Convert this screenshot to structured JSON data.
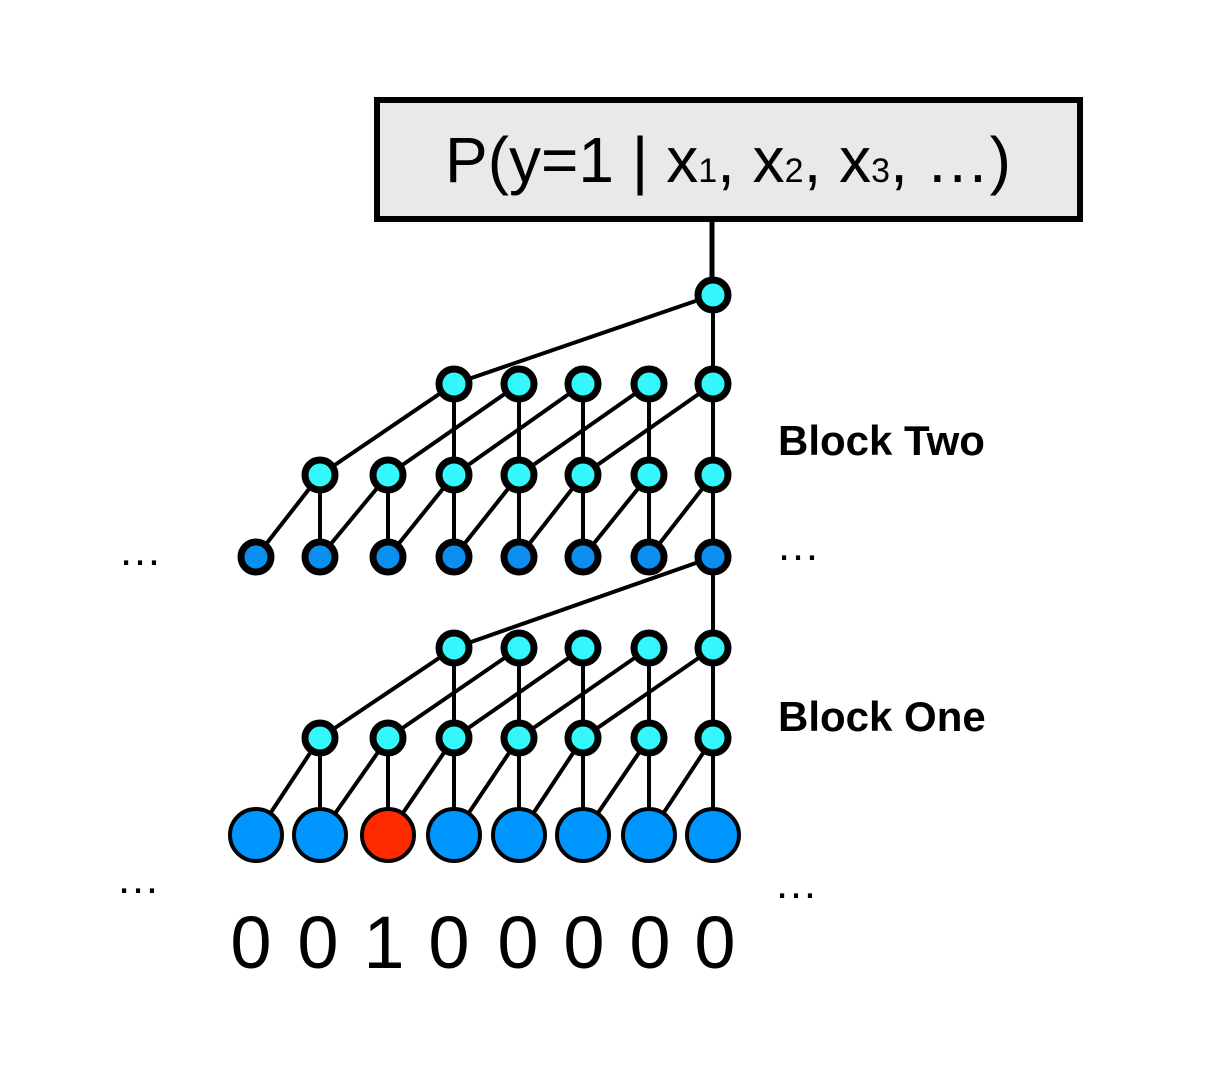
{
  "output_box": {
    "prefix": "P(y=1 | ",
    "vars": [
      {
        "name": "x",
        "sub": "1",
        "sep": ", "
      },
      {
        "name": "x",
        "sub": "2",
        "sep": ", "
      },
      {
        "name": "x",
        "sub": "3",
        "sep": ", "
      }
    ],
    "suffix": "…)"
  },
  "blocks": {
    "two": "Block Two",
    "one": "Block One"
  },
  "ellipsis": "…",
  "inputs": [
    "0",
    "0",
    "1",
    "0",
    "0",
    "0",
    "0",
    "0"
  ],
  "colors": {
    "hidden_node": "#33f7fa",
    "block_output_node": "#0a8ff0",
    "input_node": "#0096ff",
    "active_input_node": "#ff2a00",
    "box_fill": "#e9e9e9",
    "stroke": "#000000"
  }
}
